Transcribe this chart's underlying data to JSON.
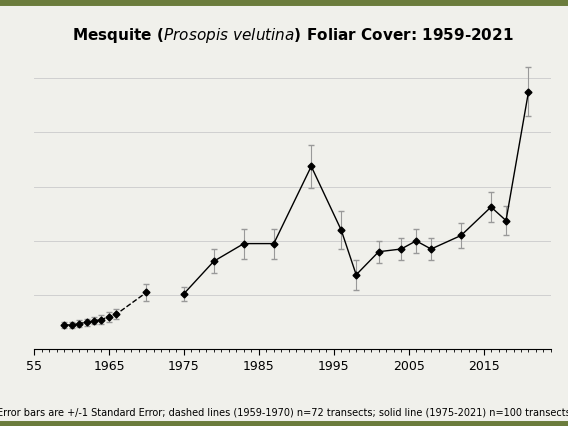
{
  "caption": "Error bars are +/-1 Standard Error; dashed lines (1959-1970) n=72 transects; solid line (1975-2021) n=100 transects",
  "dashed_years": [
    1959,
    1960,
    1961,
    1962,
    1963,
    1964,
    1965,
    1966,
    1970
  ],
  "dashed_values": [
    1.8,
    1.8,
    1.9,
    2.0,
    2.1,
    2.2,
    2.4,
    2.6,
    4.2
  ],
  "dashed_errors": [
    0.25,
    0.25,
    0.25,
    0.25,
    0.25,
    0.3,
    0.35,
    0.35,
    0.6
  ],
  "solid_years": [
    1975,
    1979,
    1983,
    1987,
    1992,
    1996,
    1998,
    2001,
    2004,
    2006,
    2008,
    2012,
    2016,
    2018,
    2021
  ],
  "solid_values": [
    4.1,
    6.5,
    7.8,
    7.8,
    13.5,
    8.8,
    5.5,
    7.2,
    7.4,
    8.0,
    7.4,
    8.4,
    10.5,
    9.5,
    19.0
  ],
  "solid_errors": [
    0.5,
    0.9,
    1.1,
    1.1,
    1.6,
    1.4,
    1.1,
    0.8,
    0.8,
    0.9,
    0.8,
    0.9,
    1.1,
    1.1,
    1.8
  ],
  "xlim": [
    1955,
    2024
  ],
  "ylim": [
    0,
    22
  ],
  "xticks": [
    1955,
    1965,
    1975,
    1985,
    1995,
    2005,
    2015
  ],
  "xticklabels": [
    "55",
    "1965",
    "1975",
    "1985",
    "1995",
    "2005",
    "2015"
  ],
  "yticks": [],
  "bg_color": "#f0f0eb",
  "border_color": "#6b7c3c",
  "line_color": "#000000",
  "marker_color": "#000000",
  "grid_color": "#d0d0d0",
  "caption_fontsize": 7,
  "title_fontsize": 11
}
